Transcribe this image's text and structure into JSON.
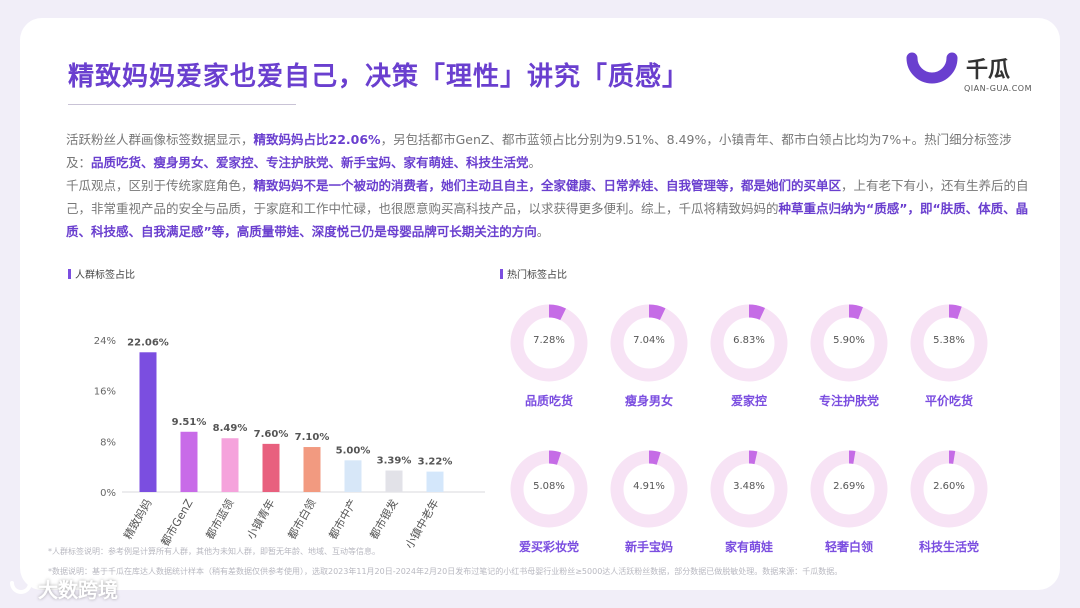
{
  "header": {
    "title": "精致妈妈爱家也爱自己，决策「理性」讲究「质感」",
    "logo_name": "千瓜",
    "logo_url": "QIAN-GUA.COM"
  },
  "paragraph1": {
    "t1": "活跃粉丝人群画像标签数据显示，",
    "h1": "精致妈妈占比22.06%",
    "t2": "，另包括都市GenZ、都市蓝领占比分别为9.51%、8.49%，小镇青年、都市白领占比均为7%+。热门细分标签涉及：",
    "h2": "品质吃货、瘦身男女、爱家控、专注护肤党、新手宝妈、家有萌娃、科技生活党",
    "t3": "。"
  },
  "paragraph2": {
    "t1": "千瓜观点，区别于传统家庭角色，",
    "h1": "精致妈妈不是一个被动的消费者，她们主动且自主，全家健康、日常养娃、自我管理等，都是她们的买单区",
    "t2": "，上有老下有小，还有生养后的自己，非常重视产品的安全与品质，于家庭和工作中忙碌，也很愿意购买高科技产品，以求获得更多便利。综上，千瓜将精致妈妈的",
    "h2": "种草重点归纳为“质感”，即“肤质、体质、晶质、科技感、自我满足感”等，高质量带娃、深度悦己仍是母婴品牌可长期关注的方向",
    "t3": "。"
  },
  "left_section_title": "人群标签占比",
  "right_section_title": "热门标签占比",
  "chart_data": [
    {
      "type": "bar",
      "title": "人群标签占比",
      "categories": [
        "精致妈妈",
        "都市GenZ",
        "都市蓝领",
        "小镇青年",
        "都市白领",
        "都市中产",
        "都市银发",
        "小镇中老年"
      ],
      "values": [
        22.06,
        9.51,
        8.49,
        7.6,
        7.1,
        5.0,
        3.39,
        3.22
      ],
      "value_labels": [
        "22.06%",
        "9.51%",
        "8.49%",
        "7.60%",
        "7.10%",
        "5.00%",
        "3.39%",
        "3.22%"
      ],
      "yticks": [
        "24%",
        "16%",
        "8%",
        "0%"
      ],
      "ytick_values": [
        24,
        16,
        8,
        0
      ],
      "ylim": [
        0,
        24
      ],
      "colors": [
        "#7b4ee0",
        "#c86be8",
        "#f5a3dc",
        "#e8607e",
        "#f29a80",
        "#d7e7f8",
        "#e2e2e8",
        "#d4e7fb"
      ]
    },
    {
      "type": "pie",
      "title": "热门标签占比",
      "labels": [
        "品质吃货",
        "瘦身男女",
        "爱家控",
        "专注护肤党",
        "平价吃货",
        "爱买彩妆党",
        "新手宝妈",
        "家有萌娃",
        "轻奢白领",
        "科技生活党"
      ],
      "values": [
        7.28,
        7.04,
        6.83,
        5.9,
        5.38,
        5.08,
        4.91,
        3.48,
        2.69,
        2.6
      ],
      "value_labels": [
        "7.28%",
        "7.04%",
        "6.83%",
        "5.90%",
        "5.38%",
        "5.08%",
        "4.91%",
        "3.48%",
        "2.69%",
        "2.60%"
      ],
      "colors": {
        "ring": "#f7e3f5",
        "arc": "#c56ce6"
      }
    }
  ],
  "footnotes": {
    "line1": "*人群标签说明：参考例是计算所有人群，其他为未知人群，即暂无年龄、地域、互动等信息。",
    "line2": "*数据说明：基于千瓜在库达人数据统计样本（稍有差数据仅供参考使用），选取2023年11月20日-2024年2月20日发布过笔记的小红书母婴行业粉丝≥5000达人活跃粉丝数据，部分数据已做脱敏处理。数据来源：千瓜数据。"
  },
  "watermark": {
    "bottom_left": "大数跨境"
  }
}
